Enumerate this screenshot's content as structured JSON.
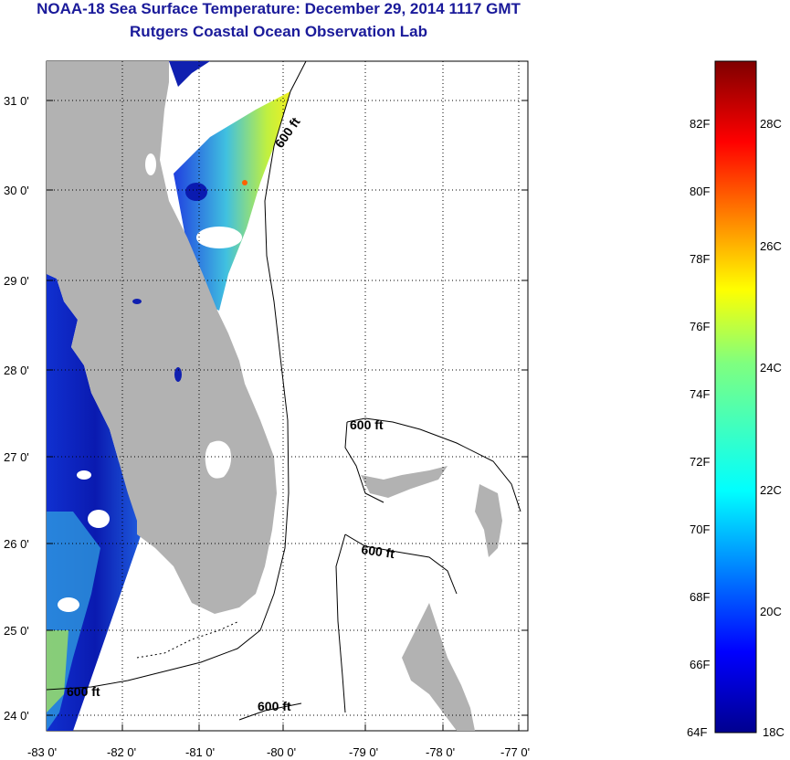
{
  "header": {
    "title": "NOAA-18 Sea Surface Temperature:  December 29, 2014 1117 GMT",
    "subtitle": "Rutgers Coastal Ocean Observation Lab"
  },
  "map": {
    "lon_ticks": [
      "-83 0'",
      "-82 0'",
      "-81 0'",
      "-80 0'",
      "-79 0'",
      "-78 0'",
      "-77 0'"
    ],
    "lat_ticks": [
      "31 0'",
      "30 0'",
      "29 0'",
      "28 0'",
      "27 0'",
      "26 0'",
      "25 0'",
      "24 0'"
    ],
    "contour_labels": [
      "600 ft",
      "600 ft",
      "600 ft",
      "600 ft",
      "600 ft"
    ],
    "colors": {
      "land": "#b2b2b2",
      "contour": "#000000",
      "cloud": "#ffffff"
    }
  },
  "colorbar": {
    "f_labels": [
      "82F",
      "80F",
      "78F",
      "76F",
      "74F",
      "72F",
      "70F",
      "68F",
      "66F",
      "64F"
    ],
    "c_labels": [
      "28C",
      "26C",
      "24C",
      "22C",
      "20C",
      "18C"
    ]
  }
}
